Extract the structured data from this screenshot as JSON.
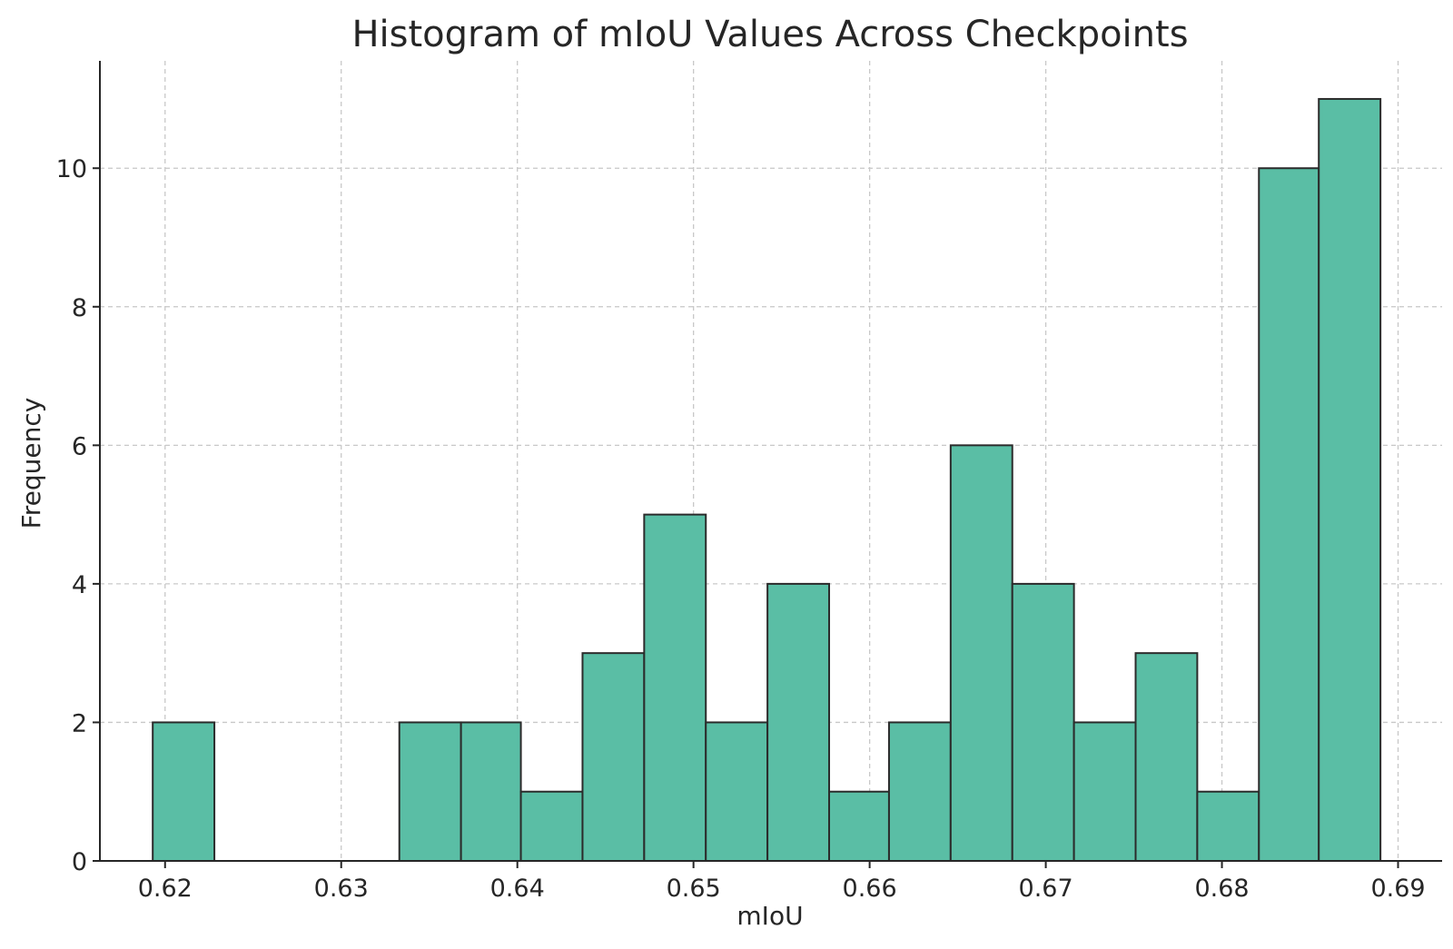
{
  "chart_data": {
    "type": "bar",
    "title": "Histogram of mIoU Values Across Checkpoints",
    "xlabel": "mIoU",
    "ylabel": "Frequency",
    "xlim": [
      0.6163,
      0.6925
    ],
    "ylim": [
      0,
      11.55
    ],
    "grid": true,
    "x_ticks": [
      0.62,
      0.63,
      0.64,
      0.65,
      0.66,
      0.67,
      0.68,
      0.69
    ],
    "x_tick_labels": [
      "0.62",
      "0.63",
      "0.64",
      "0.65",
      "0.66",
      "0.67",
      "0.68",
      "0.69"
    ],
    "y_ticks": [
      0,
      2,
      4,
      6,
      8,
      10
    ],
    "y_tick_labels": [
      "0",
      "2",
      "4",
      "6",
      "8",
      "10"
    ],
    "bar_color": "#5abea5",
    "edge_color": "#2b2b2b",
    "bins": [
      {
        "start": 0.6193,
        "end": 0.6228,
        "count": 2
      },
      {
        "start": 0.6228,
        "end": 0.6263,
        "count": 0
      },
      {
        "start": 0.6263,
        "end": 0.6298,
        "count": 0
      },
      {
        "start": 0.6298,
        "end": 0.6333,
        "count": 0
      },
      {
        "start": 0.6333,
        "end": 0.6368,
        "count": 2
      },
      {
        "start": 0.6368,
        "end": 0.6402,
        "count": 2
      },
      {
        "start": 0.6402,
        "end": 0.6437,
        "count": 1
      },
      {
        "start": 0.6437,
        "end": 0.6472,
        "count": 3
      },
      {
        "start": 0.6472,
        "end": 0.6507,
        "count": 5
      },
      {
        "start": 0.6507,
        "end": 0.6542,
        "count": 2
      },
      {
        "start": 0.6542,
        "end": 0.6577,
        "count": 4
      },
      {
        "start": 0.6577,
        "end": 0.6611,
        "count": 1
      },
      {
        "start": 0.6611,
        "end": 0.6646,
        "count": 2
      },
      {
        "start": 0.6646,
        "end": 0.6681,
        "count": 6
      },
      {
        "start": 0.6681,
        "end": 0.6716,
        "count": 4
      },
      {
        "start": 0.6716,
        "end": 0.6751,
        "count": 2
      },
      {
        "start": 0.6751,
        "end": 0.6786,
        "count": 3
      },
      {
        "start": 0.6786,
        "end": 0.6821,
        "count": 1
      },
      {
        "start": 0.6821,
        "end": 0.6855,
        "count": 10
      },
      {
        "start": 0.6855,
        "end": 0.689,
        "count": 11
      }
    ]
  }
}
